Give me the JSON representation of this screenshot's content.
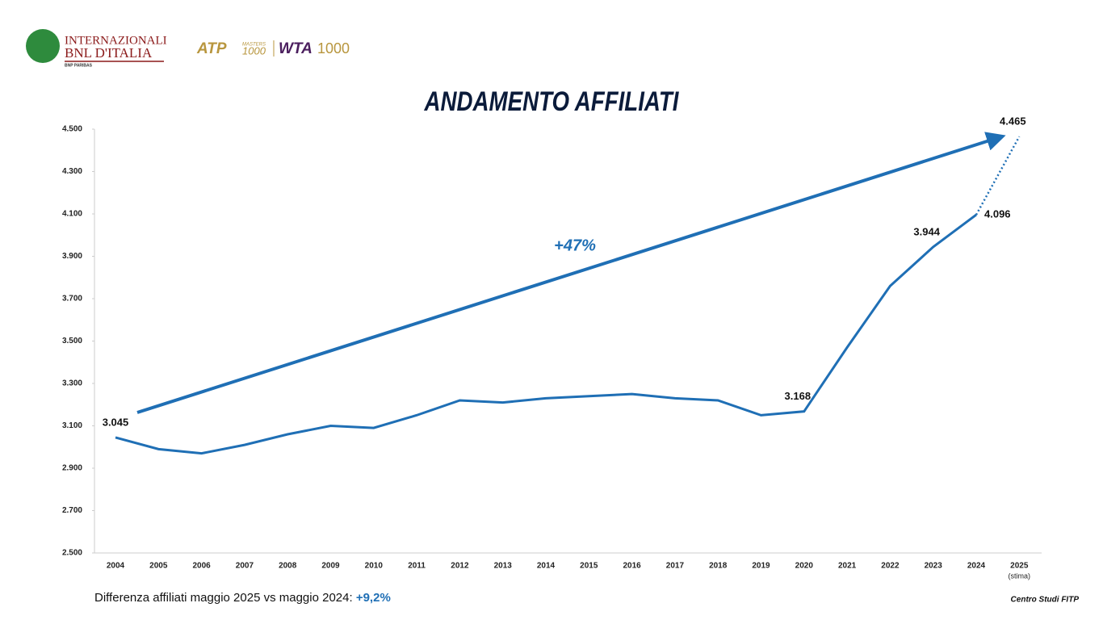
{
  "header": {
    "brand_line1": "INTERNAZIONALI",
    "brand_line2": "BNL D'ITALIA",
    "brand_sub": "BNP PARIBAS",
    "atp": "ATP",
    "atp_sub": "MASTERS",
    "atp_num": "1000",
    "wta": "WTA",
    "wta_num": "1000"
  },
  "chart_data": {
    "type": "line",
    "title": "ANDAMENTO AFFILIATI",
    "categories": [
      "2004",
      "2005",
      "2006",
      "2007",
      "2008",
      "2009",
      "2010",
      "2011",
      "2012",
      "2013",
      "2014",
      "2015",
      "2016",
      "2017",
      "2018",
      "2019",
      "2020",
      "2021",
      "2022",
      "2023",
      "2024",
      "2025"
    ],
    "category_note": "(stima)",
    "series": [
      {
        "name": "Affiliati",
        "color": "#1f6fb5",
        "values": [
          3045,
          2990,
          2970,
          3010,
          3060,
          3100,
          3090,
          3150,
          3220,
          3210,
          3230,
          3240,
          3250,
          3230,
          3220,
          3150,
          3168,
          3470,
          3760,
          3944,
          4096,
          4465
        ],
        "value_labels": [
          "3.045",
          null,
          null,
          null,
          null,
          null,
          null,
          null,
          null,
          null,
          null,
          null,
          null,
          null,
          null,
          null,
          "3.168",
          null,
          null,
          "3.944",
          "4.096",
          "4.465"
        ],
        "last_segment_style": "dotted"
      }
    ],
    "ylim": [
      2500,
      4500
    ],
    "yticks": [
      {
        "value": 2500,
        "label": "2.500"
      },
      {
        "value": 2700,
        "label": "2.700"
      },
      {
        "value": 2900,
        "label": "2.900"
      },
      {
        "value": 3100,
        "label": "3.100"
      },
      {
        "value": 3300,
        "label": "3.300"
      },
      {
        "value": 3500,
        "label": "3.500"
      },
      {
        "value": 3700,
        "label": "3.700"
      },
      {
        "value": 3900,
        "label": "3.900"
      },
      {
        "value": 4100,
        "label": "4.100"
      },
      {
        "value": 4300,
        "label": "4.300"
      },
      {
        "value": 4500,
        "label": "4.500"
      }
    ],
    "annotation": "+47%"
  },
  "footer": {
    "note": "Differenza affiliati maggio 2025 vs maggio 2024:",
    "note_value": "+9,2%",
    "source": "Centro Studi FITP"
  }
}
